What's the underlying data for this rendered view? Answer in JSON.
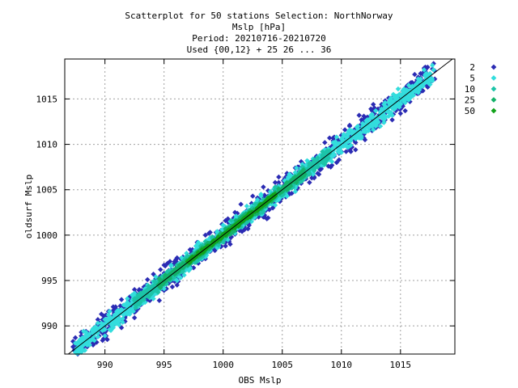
{
  "chart_data": {
    "type": "scatter",
    "title_lines": [
      "Scatterplot for   50 stations Selection: NorthNorway",
      "Mslp [hPa]",
      "Period: 20210716-20210720",
      "Used {00,12} + 25 26 ... 36"
    ],
    "xlabel": "OBS Mslp",
    "ylabel": "oldsurf Mslp",
    "xlim": [
      986.6,
      1019.6
    ],
    "ylim": [
      986.9,
      1019.4
    ],
    "xticks": [
      990,
      995,
      1000,
      1005,
      1010,
      1015
    ],
    "yticks": [
      990,
      995,
      1000,
      1005,
      1010,
      1015
    ],
    "grid": true,
    "diagonal_line": true,
    "legend_position": "right",
    "legend": [
      {
        "label": "2",
        "color": "#2b2bb3"
      },
      {
        "label": "5",
        "color": "#33dddd"
      },
      {
        "label": "10",
        "color": "#1cc4a8"
      },
      {
        "label": "25",
        "color": "#14b26a"
      },
      {
        "label": "50",
        "color": "#11a21a"
      }
    ],
    "density_bands": [
      {
        "class": "2",
        "x_range": [
          987.2,
          1018.0
        ],
        "max_deviation": 2.2
      },
      {
        "class": "5",
        "x_range": [
          987.5,
          1017.8
        ],
        "max_deviation": 1.5
      },
      {
        "class": "10",
        "x_range": [
          992.5,
          1009.0
        ],
        "max_deviation": 1.0
      },
      {
        "class": "25",
        "x_range": [
          994.5,
          1007.0
        ],
        "max_deviation": 0.6
      },
      {
        "class": "50",
        "x_range": [
          997.0,
          1004.5
        ],
        "max_deviation": 0.3
      }
    ]
  }
}
